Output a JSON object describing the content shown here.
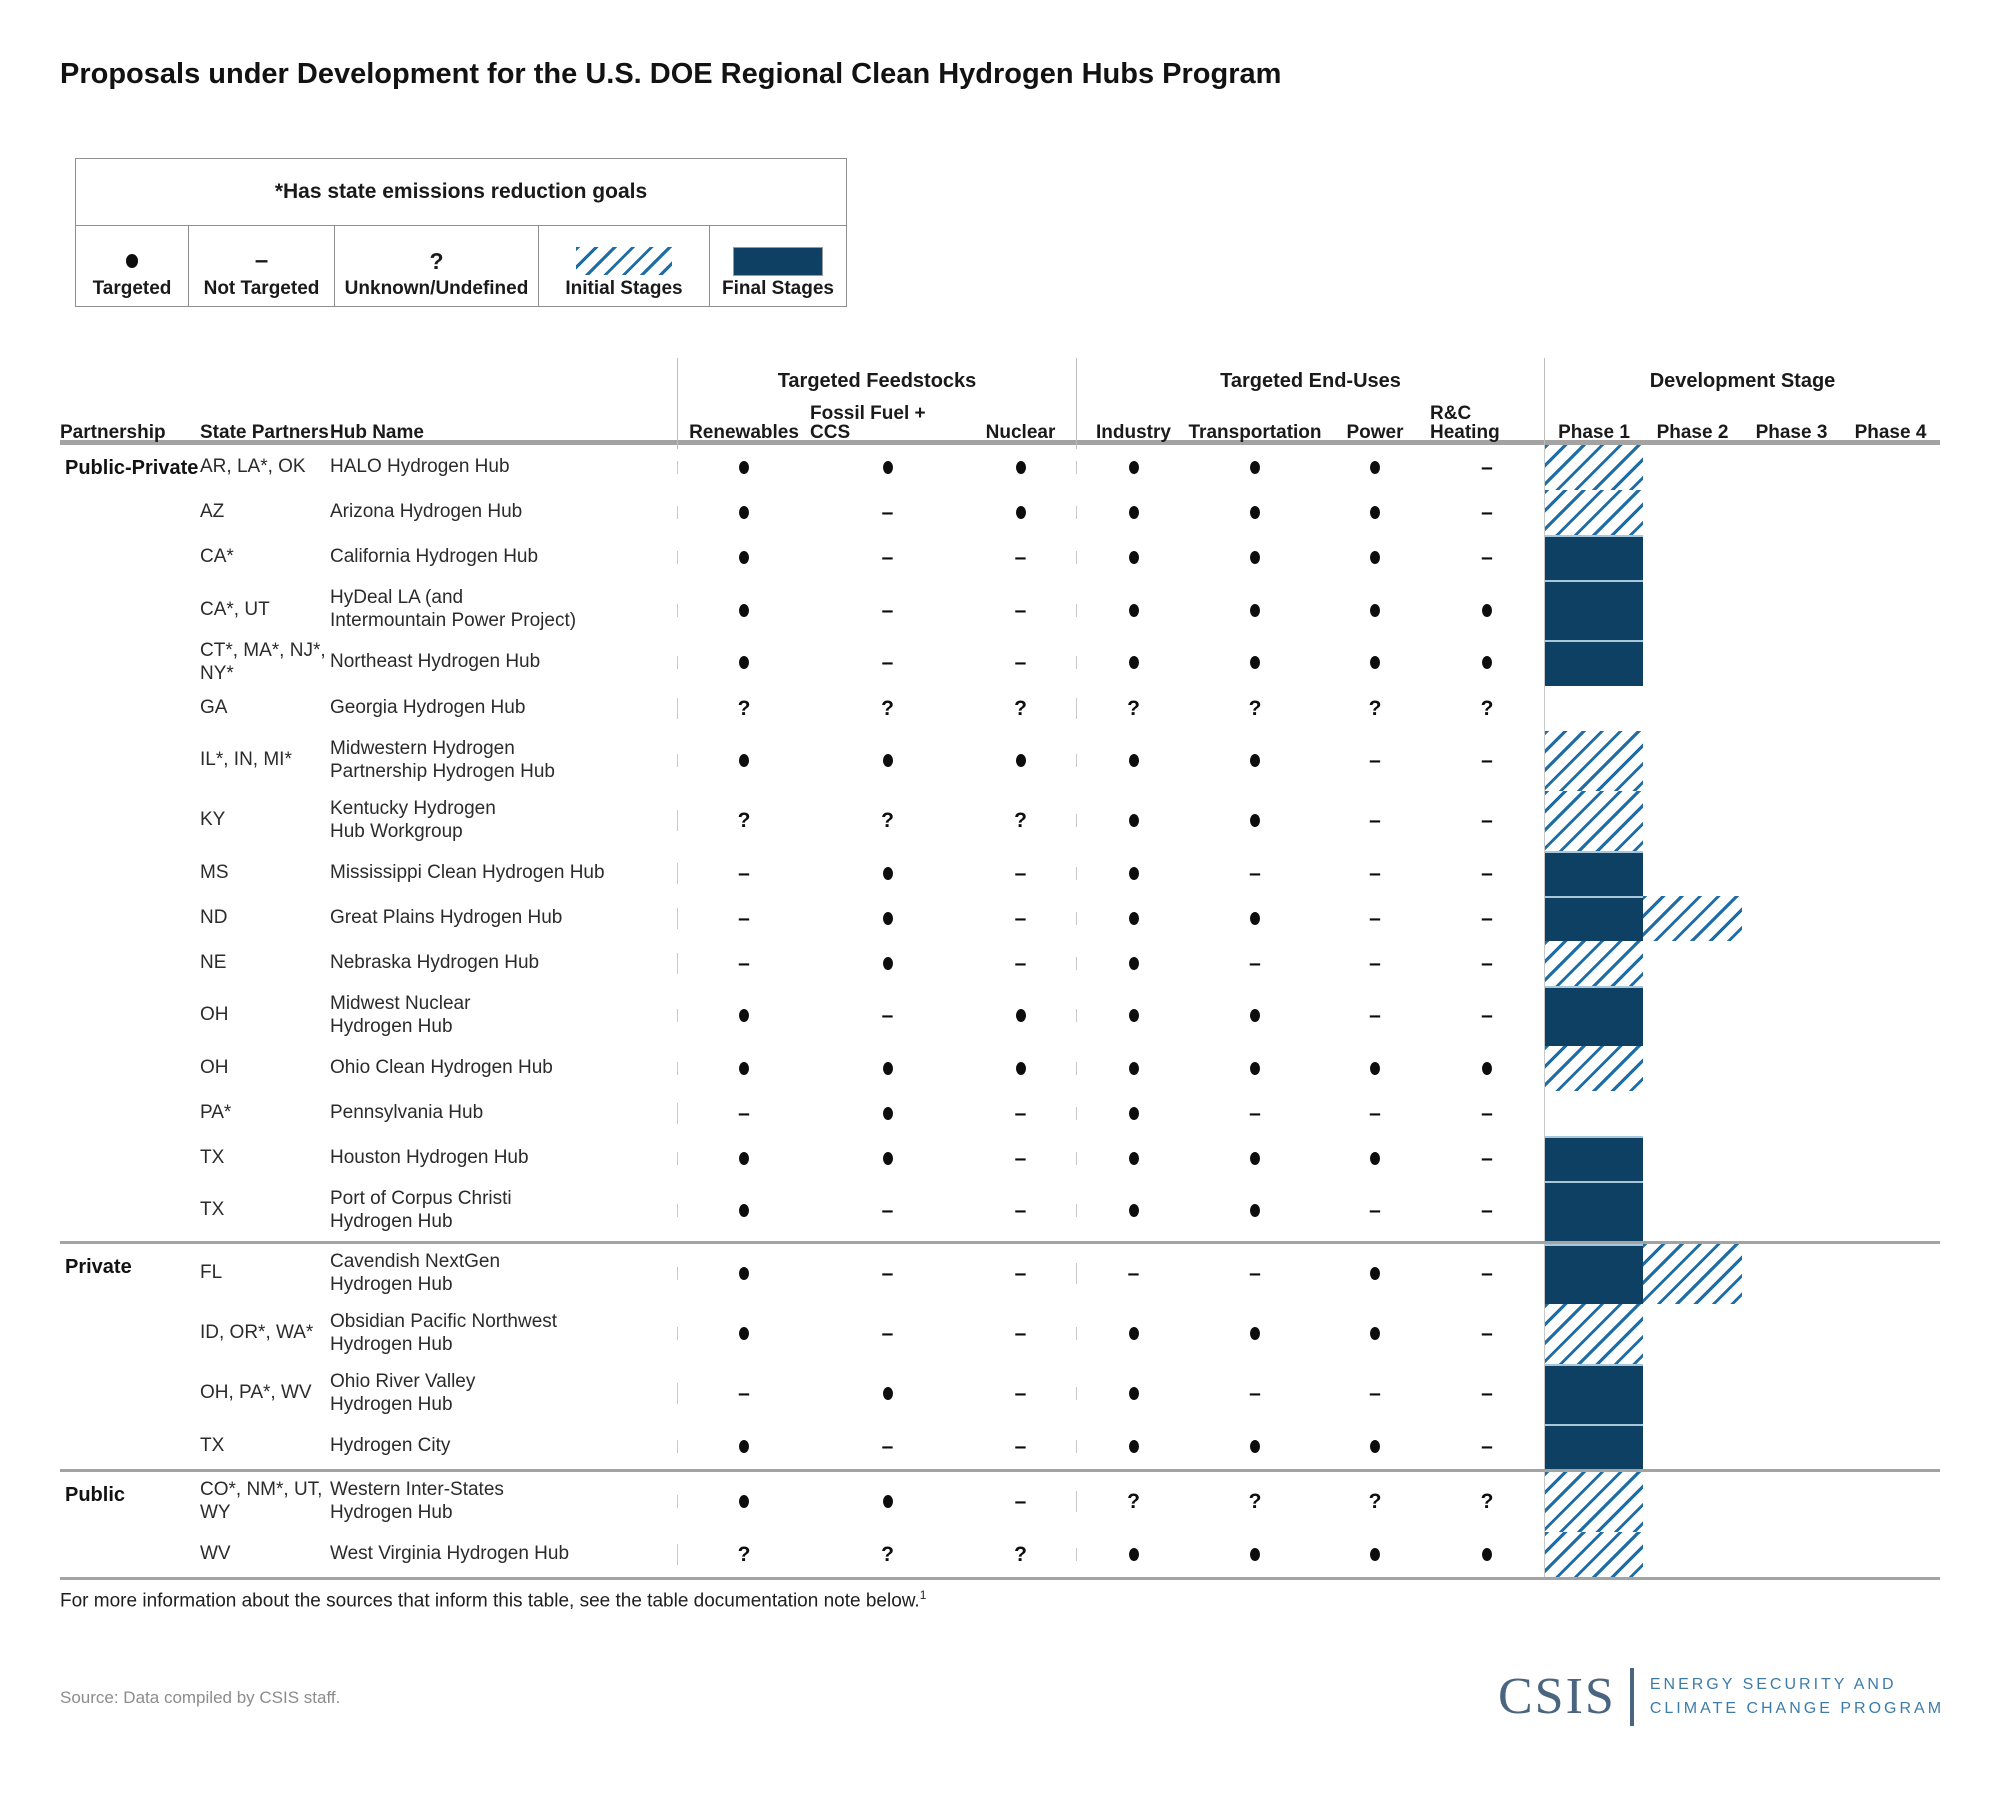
{
  "title": "Proposals under Development for the U.S. DOE Regional Clean Hydrogen Hubs Program",
  "legend": {
    "note": "*Has state emissions reduction goals",
    "items": [
      {
        "symbol": "dot",
        "label": "Targeted"
      },
      {
        "symbol": "dash",
        "label": "Not Targeted"
      },
      {
        "symbol": "question",
        "label": "Unknown/Undefined"
      },
      {
        "symbol": "hatch",
        "label": "Initial Stages"
      },
      {
        "symbol": "solid",
        "label": "Final Stages"
      }
    ]
  },
  "chart_data": {
    "type": "table",
    "column_groups": [
      "Targeted Feedstocks",
      "Targeted End-Uses",
      "Development Stage"
    ],
    "columns": [
      "Partnership",
      "State Partners",
      "Hub Name",
      "Renewables",
      "Fossil Fuel + CCS",
      "Nuclear",
      "Industry",
      "Transportation",
      "Power",
      "R&C Heating",
      "Phase 1",
      "Phase 2",
      "Phase 3",
      "Phase 4"
    ],
    "symbol_legend": {
      "dot": "Targeted",
      "dash": "Not Targeted",
      "q": "Unknown/Undefined"
    },
    "stage_legend": {
      "initial": "Initial Stages",
      "final": "Final Stages"
    },
    "rows": [
      {
        "partnership": "Public-Private",
        "section_start": false,
        "state_partners": "AR, LA*, OK",
        "hub_name": "HALO Hydrogen Hub",
        "feedstocks": [
          "dot",
          "dot",
          "dot"
        ],
        "end_uses": [
          "dot",
          "dot",
          "dot",
          "dash"
        ],
        "stages": [
          "initial",
          null,
          null,
          null
        ]
      },
      {
        "partnership": "",
        "section_start": false,
        "state_partners": "AZ",
        "hub_name": "Arizona Hydrogen Hub",
        "feedstocks": [
          "dot",
          "dash",
          "dot"
        ],
        "end_uses": [
          "dot",
          "dot",
          "dot",
          "dash"
        ],
        "stages": [
          "initial",
          null,
          null,
          null
        ]
      },
      {
        "partnership": "",
        "section_start": false,
        "state_partners": "CA*",
        "hub_name": "California Hydrogen Hub",
        "feedstocks": [
          "dot",
          "dash",
          "dash"
        ],
        "end_uses": [
          "dot",
          "dot",
          "dot",
          "dash"
        ],
        "stages": [
          "final",
          null,
          null,
          null
        ]
      },
      {
        "partnership": "",
        "section_start": false,
        "state_partners": "CA*, UT",
        "hub_name": "HyDeal LA (and\nIntermountain Power Project)",
        "feedstocks": [
          "dot",
          "dash",
          "dash"
        ],
        "end_uses": [
          "dot",
          "dot",
          "dot",
          "dot"
        ],
        "stages": [
          "final",
          null,
          null,
          null
        ]
      },
      {
        "partnership": "",
        "section_start": false,
        "state_partners": "CT*, MA*, NJ*, NY*",
        "hub_name": "Northeast Hydrogen Hub",
        "feedstocks": [
          "dot",
          "dash",
          "dash"
        ],
        "end_uses": [
          "dot",
          "dot",
          "dot",
          "dot"
        ],
        "stages": [
          "final",
          null,
          null,
          null
        ]
      },
      {
        "partnership": "",
        "section_start": false,
        "state_partners": "GA",
        "hub_name": "Georgia Hydrogen Hub",
        "feedstocks": [
          "q",
          "q",
          "q"
        ],
        "end_uses": [
          "q",
          "q",
          "q",
          "q"
        ],
        "stages": [
          null,
          null,
          null,
          null
        ]
      },
      {
        "partnership": "",
        "section_start": false,
        "state_partners": "IL*, IN, MI*",
        "hub_name": "Midwestern Hydrogen\nPartnership Hydrogen Hub",
        "feedstocks": [
          "dot",
          "dot",
          "dot"
        ],
        "end_uses": [
          "dot",
          "dot",
          "dash",
          "dash"
        ],
        "stages": [
          "initial",
          null,
          null,
          null
        ]
      },
      {
        "partnership": "",
        "section_start": false,
        "state_partners": "KY",
        "hub_name": "Kentucky Hydrogen\nHub Workgroup",
        "feedstocks": [
          "q",
          "q",
          "q"
        ],
        "end_uses": [
          "dot",
          "dot",
          "dash",
          "dash"
        ],
        "stages": [
          "initial",
          null,
          null,
          null
        ]
      },
      {
        "partnership": "",
        "section_start": false,
        "state_partners": "MS",
        "hub_name": "Mississippi Clean Hydrogen Hub",
        "feedstocks": [
          "dash",
          "dot",
          "dash"
        ],
        "end_uses": [
          "dot",
          "dash",
          "dash",
          "dash"
        ],
        "stages": [
          "final",
          null,
          null,
          null
        ]
      },
      {
        "partnership": "",
        "section_start": false,
        "state_partners": "ND",
        "hub_name": "Great Plains Hydrogen Hub",
        "feedstocks": [
          "dash",
          "dot",
          "dash"
        ],
        "end_uses": [
          "dot",
          "dot",
          "dash",
          "dash"
        ],
        "stages": [
          "final",
          "initial",
          null,
          null
        ]
      },
      {
        "partnership": "",
        "section_start": false,
        "state_partners": "NE",
        "hub_name": "Nebraska Hydrogen Hub",
        "feedstocks": [
          "dash",
          "dot",
          "dash"
        ],
        "end_uses": [
          "dot",
          "dash",
          "dash",
          "dash"
        ],
        "stages": [
          "initial",
          null,
          null,
          null
        ]
      },
      {
        "partnership": "",
        "section_start": false,
        "state_partners": "OH",
        "hub_name": "Midwest Nuclear\nHydrogen Hub",
        "feedstocks": [
          "dot",
          "dash",
          "dot"
        ],
        "end_uses": [
          "dot",
          "dot",
          "dash",
          "dash"
        ],
        "stages": [
          "final",
          null,
          null,
          null
        ]
      },
      {
        "partnership": "",
        "section_start": false,
        "state_partners": "OH",
        "hub_name": "Ohio Clean Hydrogen Hub",
        "feedstocks": [
          "dot",
          "dot",
          "dot"
        ],
        "end_uses": [
          "dot",
          "dot",
          "dot",
          "dot"
        ],
        "stages": [
          "initial",
          null,
          null,
          null
        ]
      },
      {
        "partnership": "",
        "section_start": false,
        "state_partners": "PA*",
        "hub_name": "Pennsylvania Hub",
        "feedstocks": [
          "dash",
          "dot",
          "dash"
        ],
        "end_uses": [
          "dot",
          "dash",
          "dash",
          "dash"
        ],
        "stages": [
          null,
          null,
          null,
          null
        ]
      },
      {
        "partnership": "",
        "section_start": false,
        "state_partners": "TX",
        "hub_name": "Houston Hydrogen Hub",
        "feedstocks": [
          "dot",
          "dot",
          "dash"
        ],
        "end_uses": [
          "dot",
          "dot",
          "dot",
          "dash"
        ],
        "stages": [
          "final",
          null,
          null,
          null
        ]
      },
      {
        "partnership": "",
        "section_start": false,
        "state_partners": "TX",
        "hub_name": "Port of Corpus Christi\nHydrogen Hub",
        "feedstocks": [
          "dot",
          "dash",
          "dash"
        ],
        "end_uses": [
          "dot",
          "dot",
          "dash",
          "dash"
        ],
        "stages": [
          "final",
          null,
          null,
          null
        ]
      },
      {
        "partnership": "Private",
        "section_start": true,
        "state_partners": "FL",
        "hub_name": "Cavendish NextGen\nHydrogen Hub",
        "feedstocks": [
          "dot",
          "dash",
          "dash"
        ],
        "end_uses": [
          "dash",
          "dash",
          "dot",
          "dash"
        ],
        "stages": [
          "final",
          "initial",
          null,
          null
        ]
      },
      {
        "partnership": "",
        "section_start": false,
        "state_partners": "ID, OR*, WA*",
        "hub_name": "Obsidian Pacific Northwest\nHydrogen Hub",
        "feedstocks": [
          "dot",
          "dash",
          "dash"
        ],
        "end_uses": [
          "dot",
          "dot",
          "dot",
          "dash"
        ],
        "stages": [
          "initial",
          null,
          null,
          null
        ]
      },
      {
        "partnership": "",
        "section_start": false,
        "state_partners": "OH, PA*, WV",
        "hub_name": "Ohio River Valley\nHydrogen Hub",
        "feedstocks": [
          "dash",
          "dot",
          "dash"
        ],
        "end_uses": [
          "dot",
          "dash",
          "dash",
          "dash"
        ],
        "stages": [
          "final",
          null,
          null,
          null
        ]
      },
      {
        "partnership": "",
        "section_start": false,
        "state_partners": "TX",
        "hub_name": "Hydrogen City",
        "feedstocks": [
          "dot",
          "dash",
          "dash"
        ],
        "end_uses": [
          "dot",
          "dot",
          "dot",
          "dash"
        ],
        "stages": [
          "final",
          null,
          null,
          null
        ]
      },
      {
        "partnership": "Public",
        "section_start": true,
        "state_partners": "CO*, NM*, UT, WY",
        "hub_name": "Western Inter-States\nHydrogen Hub",
        "feedstocks": [
          "dot",
          "dot",
          "dash"
        ],
        "end_uses": [
          "q",
          "q",
          "q",
          "q"
        ],
        "stages": [
          "initial",
          null,
          null,
          null
        ]
      },
      {
        "partnership": "",
        "section_start": false,
        "state_partners": "WV",
        "hub_name": "West Virginia Hydrogen Hub",
        "feedstocks": [
          "q",
          "q",
          "q"
        ],
        "end_uses": [
          "dot",
          "dot",
          "dot",
          "dot"
        ],
        "stages": [
          "initial",
          null,
          null,
          null
        ]
      }
    ]
  },
  "footnote": {
    "text": "For more information about the sources that inform this table, see the table documentation note below.",
    "sup": "1"
  },
  "source": "Source: Data compiled by CSIS staff.",
  "logo": {
    "acronym": "CSIS",
    "program_line1": "ENERGY SECURITY AND",
    "program_line2": "CLIMATE CHANGE PROGRAM"
  },
  "colors": {
    "final_stage_navy": "#0e4064",
    "initial_stage_hatch_blue": "#1e6da6",
    "rule_gray": "#a3a3a3",
    "logo_slate": "#4a6580",
    "logo_program_blue": "#3d7ca9"
  }
}
